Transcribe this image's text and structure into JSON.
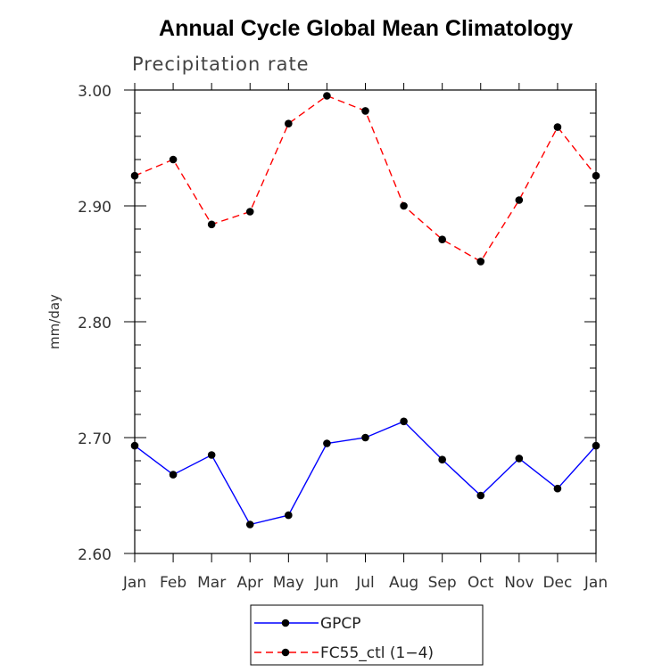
{
  "chart_data": {
    "type": "line",
    "title": "Annual Cycle Global Mean Climatology",
    "subtitle": "Precipitation rate",
    "xlabel": "",
    "ylabel": "mm/day",
    "categories": [
      "Jan",
      "Feb",
      "Mar",
      "Apr",
      "May",
      "Jun",
      "Jul",
      "Aug",
      "Sep",
      "Oct",
      "Nov",
      "Dec",
      "Jan"
    ],
    "ylim": [
      2.6,
      3.0
    ],
    "yticks": [
      "2.60",
      "2.70",
      "2.80",
      "2.90",
      "3.00"
    ],
    "grid": false,
    "legend_position": "bottom-center",
    "series": [
      {
        "name": "GPCP",
        "color": "#0000ff",
        "dash": "solid",
        "marker": "filled-circle",
        "values": [
          2.693,
          2.668,
          2.685,
          2.625,
          2.633,
          2.695,
          2.7,
          2.714,
          2.681,
          2.65,
          2.682,
          2.656,
          2.693
        ]
      },
      {
        "name": "FC55_ctl (1−4)",
        "color": "#ff0000",
        "dash": "dashed",
        "marker": "filled-circle",
        "values": [
          2.926,
          2.94,
          2.884,
          2.895,
          2.971,
          2.995,
          2.982,
          2.9,
          2.871,
          2.852,
          2.905,
          2.968,
          2.926
        ]
      }
    ]
  }
}
